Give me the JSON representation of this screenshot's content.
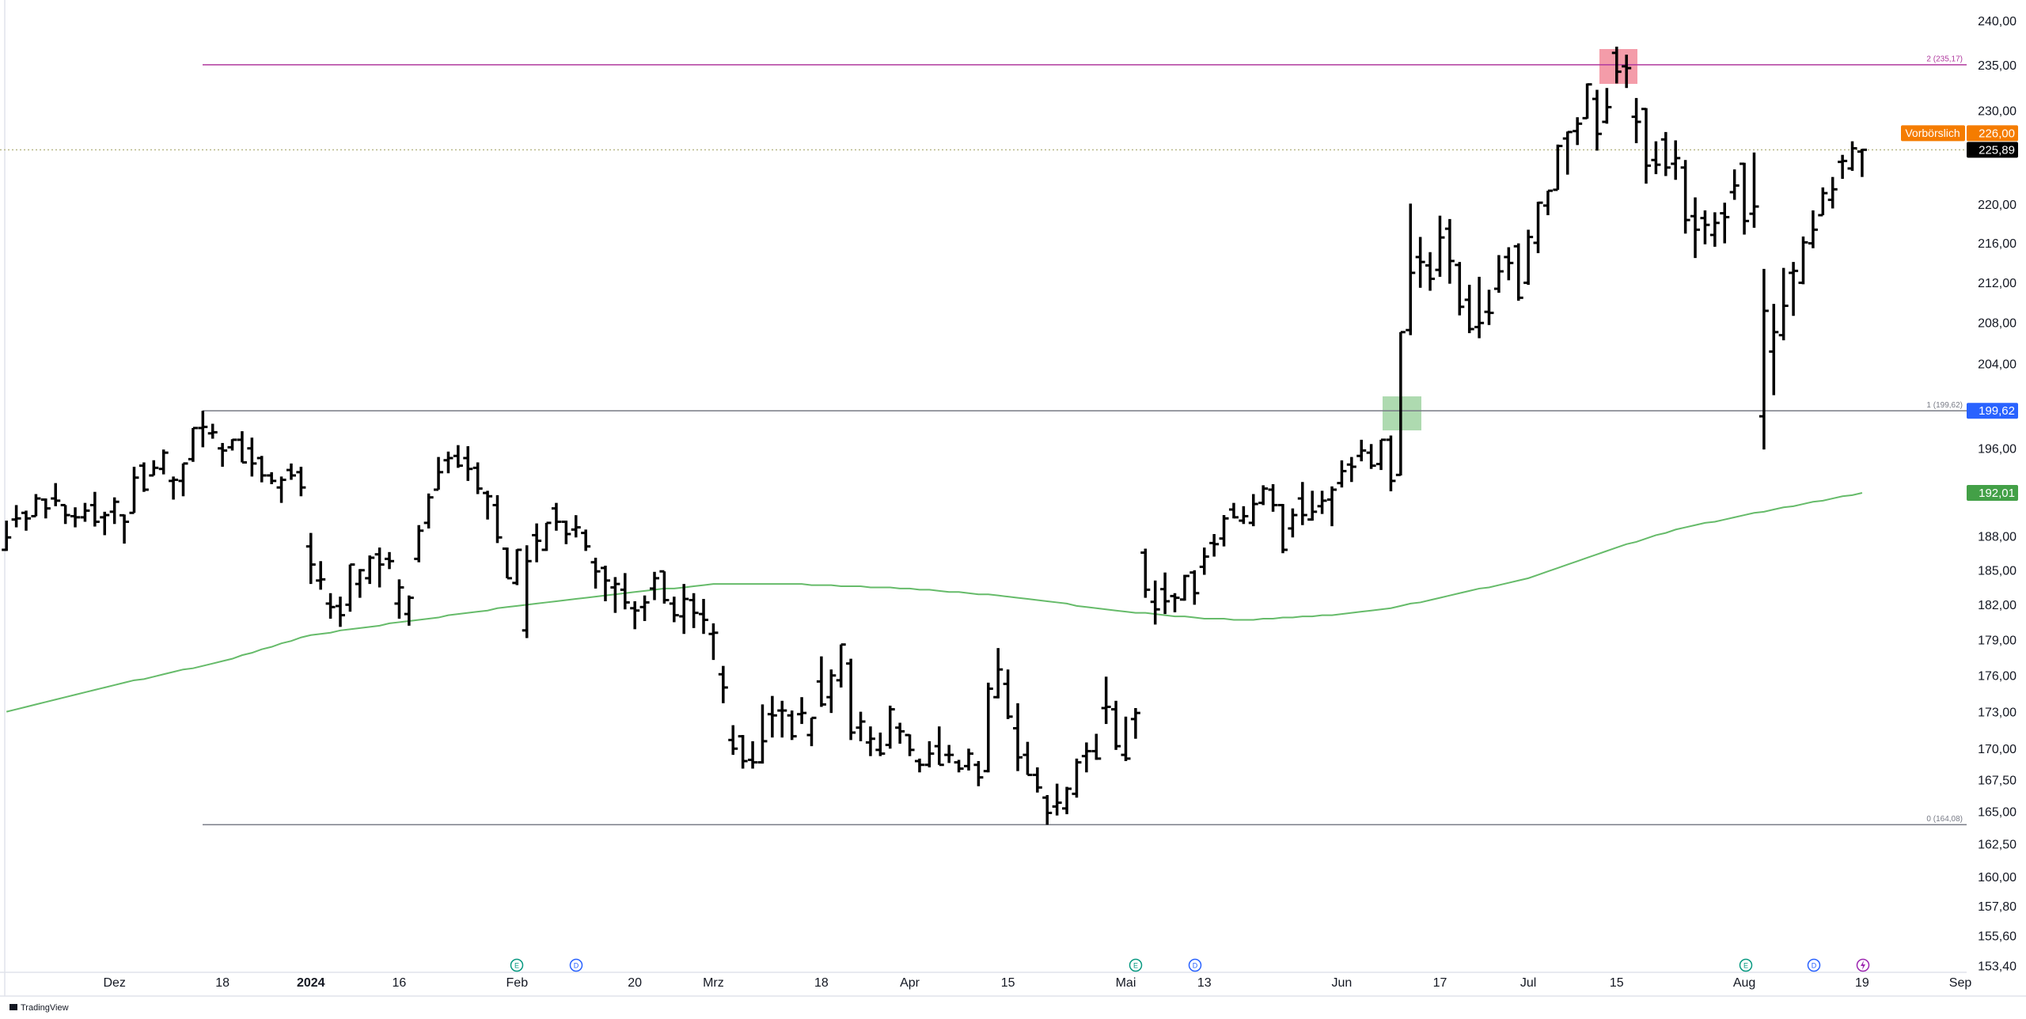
{
  "chart_data": {
    "type": "ohlc",
    "log_scale": true,
    "grid": false,
    "bar_color": "#000000",
    "ylim": [
      153.0,
      242.5
    ],
    "yticks": [
      {
        "value": 240,
        "label": "240,00"
      },
      {
        "value": 235,
        "label": "235,00"
      },
      {
        "value": 230,
        "label": "230,00"
      },
      {
        "value": 220,
        "label": "220,00"
      },
      {
        "value": 216,
        "label": "216,00"
      },
      {
        "value": 212,
        "label": "212,00"
      },
      {
        "value": 208,
        "label": "208,00"
      },
      {
        "value": 204,
        "label": "204,00"
      },
      {
        "value": 196,
        "label": "196,00"
      },
      {
        "value": 188,
        "label": "188,00"
      },
      {
        "value": 185,
        "label": "185,00"
      },
      {
        "value": 182,
        "label": "182,00"
      },
      {
        "value": 179,
        "label": "179,00"
      },
      {
        "value": 176,
        "label": "176,00"
      },
      {
        "value": 173,
        "label": "173,00"
      },
      {
        "value": 170,
        "label": "170,00"
      },
      {
        "value": 167.5,
        "label": "167,50"
      },
      {
        "value": 165,
        "label": "165,00"
      },
      {
        "value": 162.5,
        "label": "162,50"
      },
      {
        "value": 160,
        "label": "160,00"
      },
      {
        "value": 157.8,
        "label": "157,80"
      },
      {
        "value": 155.6,
        "label": "155,60"
      },
      {
        "value": 153.4,
        "label": "153,40"
      }
    ],
    "categories": [
      null,
      null,
      null,
      null,
      null,
      null,
      null,
      null,
      null,
      null,
      null,
      "Dez",
      null,
      null,
      null,
      null,
      null,
      null,
      null,
      null,
      null,
      null,
      "18",
      null,
      null,
      null,
      null,
      null,
      null,
      null,
      null,
      "2024",
      null,
      null,
      null,
      null,
      null,
      null,
      null,
      null,
      "16",
      null,
      null,
      null,
      null,
      null,
      null,
      null,
      null,
      null,
      null,
      null,
      "Feb",
      null,
      null,
      null,
      null,
      null,
      null,
      null,
      null,
      null,
      null,
      null,
      "20",
      null,
      null,
      null,
      null,
      null,
      null,
      null,
      "Mrz",
      null,
      null,
      null,
      null,
      null,
      null,
      null,
      null,
      null,
      null,
      "18",
      null,
      null,
      null,
      null,
      null,
      null,
      null,
      null,
      "Apr",
      null,
      null,
      null,
      null,
      null,
      null,
      null,
      null,
      null,
      "15",
      null,
      null,
      null,
      null,
      null,
      null,
      null,
      null,
      null,
      null,
      null,
      "Mai",
      null,
      null,
      null,
      null,
      null,
      null,
      null,
      "13",
      null,
      null,
      null,
      null,
      null,
      null,
      null,
      null,
      null,
      null,
      null,
      null,
      null,
      "Jun",
      null,
      null,
      null,
      null,
      null,
      null,
      null,
      null,
      null,
      "17",
      null,
      null,
      null,
      null,
      null,
      null,
      null,
      null,
      "Jul",
      null,
      null,
      null,
      null,
      null,
      null,
      null,
      null,
      "15",
      null,
      null,
      null,
      null,
      null,
      null,
      null,
      null,
      null,
      null,
      null,
      null,
      "Aug",
      null,
      null,
      null,
      null,
      null,
      null,
      null,
      null,
      null,
      null,
      null,
      "19",
      null,
      null,
      null,
      null,
      null,
      null,
      null,
      null,
      null,
      "Sep"
    ],
    "open": [
      186.9,
      189.6,
      190.2,
      189.9,
      191.4,
      191.5,
      190.9,
      189.9,
      189.8,
      190.9,
      189.8,
      190.3,
      189.98,
      190.2,
      194.5,
      193.6,
      194.2,
      193.1,
      193.1,
      195.1,
      198.0,
      197.5,
      196.1,
      196.2,
      196.9,
      196.1,
      195.2,
      193.6,
      192.5,
      194.1,
      193.9,
      187.2,
      184.2,
      182.2,
      181.99,
      182.1,
      183.9,
      184.4,
      186.5,
      186.1,
      182.2,
      181.3,
      186.1,
      189.3,
      192.3,
      195.0,
      195.4,
      195.2,
      194.3,
      192.0,
      190.9,
      187.0,
      183.99,
      179.9,
      188.2,
      186.9,
      190.6,
      189.4,
      188.7,
      188.4,
      185.8,
      185.3,
      183.6,
      183.4,
      181.8,
      181.9,
      183.5,
      185.0,
      182.2,
      181.1,
      182.5,
      181.3,
      179.6,
      176.2,
      170.8,
      171.1,
      169.2,
      169.0,
      172.9,
      173.2,
      172.8,
      172.9,
      171.2,
      175.6,
      174.3,
      175.7,
      177.1,
      171.8,
      170.6,
      170.0,
      170.4,
      171.8,
      171.2,
      169.1,
      168.8,
      170.3,
      169.6,
      169.0,
      168.7,
      168.8,
      168.3,
      174.3,
      175.4,
      171.75,
      169.6,
      168.0,
      166.2,
      165.5,
      165.35,
      166.5,
      169.5,
      169.9,
      173.4,
      173.3,
      169.6,
      172.5,
      186.65,
      182.35,
      183.45,
      182.85,
      182.55,
      184.9,
      185.4,
      187.5,
      187.9,
      190.5,
      189.5,
      189.3,
      191.1,
      192.3,
      190.9,
      188.8,
      191.5,
      189.6,
      190.8,
      191.4,
      192.9,
      194.6,
      195.4,
      195.7,
      194.65,
      196.9,
      193.65,
      207.4,
      214.7,
      213.85,
      213.4,
      217.6,
      213.9,
      210.4,
      207.7,
      209.2,
      211.5,
      214.7,
      215.8,
      212.1,
      216.15,
      220.0,
      221.65,
      227.1,
      227.9,
      229.3,
      231.4,
      228.9,
      236.5,
      235.0,
      229.45,
      230.3,
      224.8,
      227.0,
      224.4,
      224.0,
      218.9,
      218.7,
      216.96,
      219.2,
      221.4,
      224.4,
      219.15,
      199.1,
      205.3,
      206.9,
      213.1,
      212.1,
      216.1,
      219.0,
      220.6,
      224.6,
      223.9,
      225.7,
      null,
      null,
      null,
      null,
      null,
      null,
      null,
      null,
      null,
      null
    ],
    "high": [
      189.5,
      190.9,
      190.4,
      191.9,
      191.5,
      192.9,
      190.9,
      190.7,
      191.1,
      192.1,
      190.3,
      191.6,
      190.05,
      194.4,
      194.8,
      195.0,
      195.99,
      193.5,
      194.7,
      198.0,
      199.62,
      198.4,
      196.6,
      196.95,
      197.7,
      197.1,
      195.4,
      193.9,
      193.5,
      194.7,
      194.4,
      188.4,
      185.9,
      183.1,
      182.8,
      185.6,
      185.2,
      186.4,
      187.1,
      186.7,
      184.3,
      182.9,
      189.1,
      191.95,
      195.3,
      195.8,
      196.4,
      196.3,
      194.8,
      192.2,
      191.8,
      187.1,
      186.95,
      187.3,
      189.25,
      189.3,
      191.1,
      189.5,
      189.99,
      188.7,
      186.2,
      185.5,
      184.5,
      184.85,
      182.4,
      182.9,
      184.96,
      185.0,
      182.8,
      183.9,
      183.1,
      182.6,
      180.5,
      176.9,
      172.0,
      171.2,
      170.7,
      173.7,
      174.4,
      174.0,
      173.2,
      174.3,
      172.6,
      177.7,
      176.6,
      178.7,
      177.5,
      173.1,
      171.9,
      171.4,
      173.6,
      172.2,
      171.25,
      169.3,
      170.7,
      171.9,
      170.4,
      169.2,
      170.1,
      169.1,
      175.5,
      178.4,
      176.6,
      173.8,
      170.65,
      168.6,
      166.4,
      167.3,
      167.05,
      169.3,
      170.6,
      171.3,
      176.0,
      174.0,
      172.7,
      173.4,
      187.0,
      184.2,
      184.9,
      183.1,
      184.7,
      185.1,
      187.1,
      188.3,
      190.0,
      191.1,
      190.8,
      191.9,
      192.7,
      192.8,
      191.0,
      190.6,
      193.0,
      192.2,
      192.2,
      192.6,
      194.99,
      195.3,
      196.9,
      196.5,
      196.9,
      197.3,
      207.2,
      220.2,
      216.75,
      215.2,
      218.95,
      218.6,
      214.2,
      211.9,
      212.7,
      211.4,
      214.9,
      215.7,
      216.1,
      217.5,
      220.4,
      221.55,
      226.45,
      227.85,
      229.4,
      233.1,
      232.4,
      232.6,
      237.2,
      236.3,
      231.5,
      230.4,
      226.8,
      227.8,
      226.9,
      224.8,
      220.85,
      219.5,
      219.3,
      220.3,
      223.8,
      224.5,
      225.6,
      213.5,
      209.99,
      213.6,
      214.2,
      216.8,
      219.5,
      221.9,
      223.0,
      225.35,
      226.8,
      225.99,
      null,
      null,
      null,
      null,
      null,
      null,
      null,
      null,
      null,
      null
    ],
    "low": [
      186.8,
      188.9,
      188.6,
      189.9,
      189.7,
      190.8,
      189.2,
      188.9,
      189.4,
      188.97,
      188.2,
      189.2,
      187.45,
      190.2,
      192.1,
      193.6,
      193.7,
      191.4,
      191.7,
      194.85,
      196.2,
      197.0,
      194.4,
      195.9,
      194.8,
      193.5,
      192.97,
      192.8,
      191.1,
      193.2,
      191.7,
      183.9,
      183.4,
      180.9,
      180.2,
      181.5,
      182.7,
      183.9,
      183.6,
      185.2,
      180.9,
      180.3,
      185.8,
      188.8,
      192.3,
      193.8,
      194.3,
      193.1,
      191.9,
      189.6,
      187.5,
      184.4,
      183.8,
      179.25,
      185.8,
      186.8,
      188.6,
      187.4,
      188.0,
      186.8,
      183.5,
      182.4,
      181.4,
      181.7,
      180.0,
      180.7,
      182.5,
      182.2,
      180.6,
      179.6,
      180.1,
      179.6,
      177.4,
      173.8,
      169.6,
      168.5,
      168.5,
      168.9,
      171.0,
      171.0,
      170.8,
      172.1,
      170.3,
      173.5,
      173.0,
      175.1,
      170.8,
      170.7,
      169.5,
      169.5,
      170.1,
      170.5,
      169.5,
      168.2,
      168.6,
      168.8,
      168.95,
      168.2,
      168.35,
      167.1,
      168.2,
      174.2,
      172.5,
      168.3,
      168.0,
      166.6,
      164.08,
      164.8,
      164.9,
      166.2,
      168.2,
      169.2,
      172.1,
      170.0,
      169.1,
      170.9,
      182.7,
      180.4,
      181.3,
      181.45,
      182.45,
      182.1,
      184.7,
      186.3,
      187.2,
      189.7,
      189.2,
      189.0,
      190.9,
      190.3,
      186.6,
      188.0,
      189.1,
      189.5,
      190.1,
      189.0,
      192.5,
      193.0,
      194.9,
      194.2,
      194.1,
      192.15,
      193.6,
      206.9,
      211.6,
      211.3,
      212.7,
      212.0,
      208.85,
      207.1,
      206.6,
      207.9,
      211.1,
      212.35,
      210.3,
      211.9,
      215.1,
      219.0,
      221.65,
      223.25,
      226.4,
      229.25,
      225.8,
      228.7,
      233.1,
      232.6,
      226.6,
      222.3,
      223.3,
      223.1,
      222.7,
      217.1,
      214.6,
      216.0,
      215.75,
      216.1,
      220.6,
      217.0,
      217.7,
      196.0,
      201.1,
      206.4,
      208.8,
      211.95,
      215.6,
      219.0,
      219.7,
      222.8,
      223.65,
      223.0,
      null,
      null,
      null,
      null,
      null,
      null,
      null,
      null,
      null,
      null
    ],
    "close": [
      188.0,
      189.7,
      189.7,
      191.5,
      190.6,
      191.3,
      190.0,
      189.8,
      190.4,
      189.4,
      190.0,
      191.2,
      189.4,
      193.4,
      192.3,
      194.3,
      195.7,
      193.2,
      194.7,
      198.0,
      198.1,
      197.6,
      195.9,
      196.9,
      194.8,
      194.7,
      193.6,
      193.1,
      193.2,
      193.6,
      192.5,
      185.6,
      184.3,
      181.9,
      181.2,
      185.6,
      185.1,
      186.2,
      185.6,
      185.9,
      183.6,
      182.7,
      188.6,
      191.6,
      193.9,
      195.2,
      194.5,
      194.2,
      192.4,
      191.7,
      188.0,
      184.4,
      186.9,
      185.9,
      187.7,
      189.3,
      189.4,
      188.3,
      188.9,
      187.2,
      185.0,
      184.2,
      183.9,
      182.3,
      181.6,
      182.3,
      184.4,
      182.5,
      181.2,
      182.6,
      181.4,
      180.8,
      179.7,
      175.1,
      170.1,
      169.1,
      169.0,
      170.7,
      172.8,
      173.2,
      171.1,
      173.0,
      172.6,
      173.7,
      176.1,
      178.7,
      171.4,
      172.3,
      170.9,
      169.7,
      173.3,
      171.5,
      170.0,
      168.8,
      169.7,
      168.8,
      169.6,
      168.5,
      169.7,
      167.8,
      175.0,
      176.6,
      172.7,
      169.4,
      168.0,
      167.0,
      165.0,
      165.8,
      166.9,
      169.0,
      169.9,
      169.3,
      173.5,
      170.3,
      169.3,
      173.0,
      183.4,
      181.7,
      182.4,
      182.7,
      184.6,
      183.1,
      186.3,
      187.4,
      189.7,
      189.8,
      189.9,
      191.0,
      192.4,
      190.9,
      186.9,
      190.0,
      190.0,
      190.3,
      191.3,
      192.3,
      194.0,
      194.4,
      195.9,
      194.5,
      196.9,
      193.1,
      207.2,
      213.1,
      214.2,
      212.5,
      216.7,
      214.3,
      209.7,
      207.5,
      208.1,
      209.1,
      213.25,
      214.1,
      210.6,
      216.75,
      220.3,
      221.55,
      226.3,
      227.8,
      228.7,
      233.0,
      227.6,
      230.5,
      234.4,
      234.8,
      228.9,
      224.2,
      224.3,
      224.0,
      225.0,
      218.5,
      217.5,
      218.0,
      218.2,
      218.8,
      222.1,
      218.4,
      219.9,
      209.3,
      207.2,
      209.8,
      213.3,
      216.2,
      217.5,
      221.3,
      221.7,
      224.7,
      226.05,
      225.89,
      null,
      null,
      null,
      null,
      null,
      null,
      null,
      null,
      null,
      null
    ],
    "moving_average": {
      "color": "#66bb6a",
      "label_color": "#43a047",
      "last_label": "192,01",
      "values": [
        173.1,
        173.3,
        173.5,
        173.7,
        173.9,
        174.1,
        174.3,
        174.5,
        174.7,
        174.9,
        175.1,
        175.3,
        175.5,
        175.7,
        175.8,
        176.0,
        176.2,
        176.4,
        176.6,
        176.7,
        176.9,
        177.1,
        177.3,
        177.5,
        177.8,
        178.0,
        178.3,
        178.5,
        178.8,
        179.0,
        179.3,
        179.5,
        179.6,
        179.7,
        179.9,
        180.0,
        180.1,
        180.2,
        180.3,
        180.5,
        180.6,
        180.7,
        180.8,
        180.9,
        181.0,
        181.2,
        181.3,
        181.4,
        181.5,
        181.6,
        181.8,
        181.9,
        182.0,
        182.1,
        182.2,
        182.3,
        182.4,
        182.5,
        182.6,
        182.7,
        182.8,
        182.9,
        183.0,
        183.1,
        183.2,
        183.3,
        183.4,
        183.5,
        183.5,
        183.6,
        183.7,
        183.8,
        183.9,
        183.9,
        183.9,
        183.9,
        183.9,
        183.9,
        183.9,
        183.9,
        183.9,
        183.9,
        183.8,
        183.8,
        183.8,
        183.7,
        183.7,
        183.7,
        183.6,
        183.6,
        183.6,
        183.5,
        183.5,
        183.4,
        183.4,
        183.3,
        183.2,
        183.2,
        183.1,
        183.0,
        183.0,
        182.9,
        182.8,
        182.7,
        182.6,
        182.5,
        182.4,
        182.3,
        182.2,
        182.0,
        181.9,
        181.8,
        181.7,
        181.6,
        181.5,
        181.4,
        181.4,
        181.3,
        181.2,
        181.1,
        181.1,
        181.0,
        180.9,
        180.9,
        180.9,
        180.8,
        180.8,
        180.8,
        180.9,
        180.9,
        181.0,
        181.0,
        181.1,
        181.1,
        181.2,
        181.2,
        181.3,
        181.4,
        181.5,
        181.6,
        181.7,
        181.8,
        182.0,
        182.2,
        182.3,
        182.5,
        182.7,
        182.9,
        183.1,
        183.3,
        183.5,
        183.6,
        183.8,
        184.0,
        184.2,
        184.4,
        184.7,
        185.0,
        185.3,
        185.6,
        185.9,
        186.2,
        186.5,
        186.8,
        187.1,
        187.4,
        187.6,
        187.9,
        188.2,
        188.4,
        188.7,
        188.9,
        189.1,
        189.3,
        189.4,
        189.6,
        189.8,
        190.0,
        190.2,
        190.3,
        190.5,
        190.7,
        190.8,
        191.0,
        191.2,
        191.3,
        191.5,
        191.7,
        191.8,
        192.01,
        null,
        null,
        null,
        null,
        null,
        null,
        null,
        null,
        null,
        null
      ]
    },
    "fib": {
      "levels": [
        {
          "level_label": "2 (235,17)",
          "value": 235.17,
          "color": "#b0399e"
        },
        {
          "level_label": "1 (199,62)",
          "value": 199.62,
          "color": "#787b86",
          "axis_label": "199,62",
          "axis_color": "#2962ff"
        },
        {
          "level_label": "0 (164,08)",
          "value": 164.08,
          "color": "#787b86"
        }
      ]
    },
    "last_price": {
      "value": 225.89,
      "label": "225,89",
      "color": "#000000"
    },
    "premarket": {
      "label": "Vorbörslich",
      "value": 226.0,
      "value_label": "226,00",
      "color": "#f57c00"
    },
    "events": [
      {
        "label": "E",
        "color": "#089981"
      },
      {
        "label": "D",
        "color": "#2962ff"
      },
      {
        "label": "E",
        "color": "#089981"
      },
      {
        "label": "D",
        "color": "#2962ff"
      },
      {
        "label": "E",
        "color": "#089981"
      },
      {
        "label": "D",
        "color": "#2962ff"
      }
    ],
    "branding": "TradingView"
  }
}
